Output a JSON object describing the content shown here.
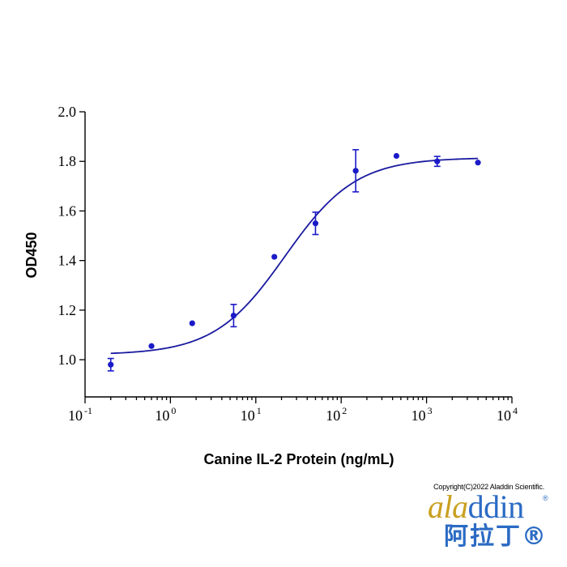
{
  "chart_data": {
    "type": "scatter",
    "xscale": "log",
    "xlim": [
      0.1,
      10000
    ],
    "ylim": [
      0.85,
      2.0
    ],
    "ylabel": "OD450",
    "xlabel": "Canine IL-2 Protein (ng/mL)",
    "yticks": [
      "1.0",
      "1.2",
      "1.4",
      "1.6",
      "1.8",
      "2.0"
    ],
    "xticks": [
      {
        "base": "10",
        "exp": "-1",
        "value": 0.1
      },
      {
        "base": "10",
        "exp": "0",
        "value": 1
      },
      {
        "base": "10",
        "exp": "1",
        "value": 10
      },
      {
        "base": "10",
        "exp": "2",
        "value": 100
      },
      {
        "base": "10",
        "exp": "3",
        "value": 1000
      },
      {
        "base": "10",
        "exp": "4",
        "value": 10000
      }
    ],
    "points": [
      {
        "x": 0.2,
        "y": 0.98,
        "err": 0.025
      },
      {
        "x": 0.6,
        "y": 1.055,
        "err": 0
      },
      {
        "x": 1.8,
        "y": 1.147,
        "err": 0
      },
      {
        "x": 5.5,
        "y": 1.178,
        "err": 0.045
      },
      {
        "x": 16.5,
        "y": 1.415,
        "err": 0
      },
      {
        "x": 50,
        "y": 1.55,
        "err": 0.045
      },
      {
        "x": 148,
        "y": 1.762,
        "err": 0.085
      },
      {
        "x": 444,
        "y": 1.822,
        "err": 0
      },
      {
        "x": 1333,
        "y": 1.8,
        "err": 0.02
      },
      {
        "x": 4000,
        "y": 1.795,
        "err": 0
      }
    ],
    "fit": {
      "model": "4PL",
      "bottom": 1.02,
      "top": 1.815,
      "ec50": 22,
      "hill": 1.05,
      "color": "#1a1aa0"
    },
    "point_color": "#1a1ac8",
    "grid": false,
    "legend": "none"
  },
  "footer": {
    "copyright": "Copyright(C)2022 Aladdin Scientific.",
    "logo_word_a": "a",
    "logo_word_la": "la",
    "logo_word_ddin": "ddin",
    "logo_reg": "®",
    "logo_cn": "阿拉丁®"
  }
}
